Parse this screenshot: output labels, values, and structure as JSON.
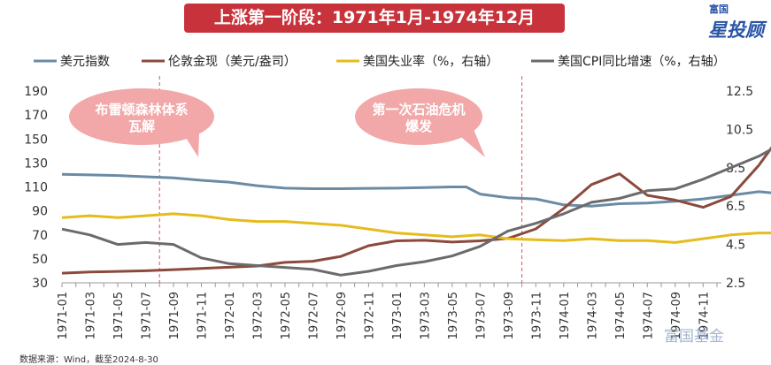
{
  "title": "上涨第一阶段：1971年1月-1974年12月",
  "logo": {
    "top": "富国",
    "main": "星投顾"
  },
  "watermark": "富国基金",
  "source": "数据来源：Wind，截至2024-8-30",
  "annotations": [
    {
      "text_line1": "布雷顿森林体系",
      "text_line2": "瓦解"
    },
    {
      "text_line1": "第一次石油危机",
      "text_line2": "爆发"
    }
  ],
  "colors": {
    "usd": "#6b8ba4",
    "gold": "#8b4a3c",
    "unemp": "#e5bc1b",
    "cpi": "#6b6b6b",
    "title_bg": "#c8333b",
    "bubble": "#f2a8a8"
  },
  "chart_data": {
    "type": "line",
    "title": "上涨第一阶段：1971年1月-1974年12月",
    "x_tick_labels": [
      "1971-01",
      "1971-03",
      "1971-05",
      "1971-07",
      "1971-09",
      "1971-11",
      "1972-01",
      "1972-03",
      "1972-05",
      "1972-07",
      "1972-09",
      "1972-11",
      "1973-01",
      "1973-03",
      "1973-05",
      "1973-07",
      "1973-09",
      "1973-11",
      "1974-01",
      "1974-03",
      "1974-05",
      "1974-07",
      "1974-09",
      "1974-11"
    ],
    "y_left": {
      "min": 30,
      "max": 190,
      "ticks": [
        30,
        50,
        70,
        90,
        110,
        130,
        150,
        170,
        190
      ]
    },
    "y_right": {
      "min": 2.5,
      "max": 12.5,
      "ticks": [
        2.5,
        4.5,
        6.5,
        8.5,
        10.5,
        12.5
      ]
    },
    "legend": [
      "美元指数",
      "伦敦金现（美元/盎司）",
      "美国失业率（%，右轴）",
      "美国CPI同比增速（%，右轴）"
    ],
    "legend_position": "top",
    "vlines": [
      "1971-08",
      "1973-10"
    ],
    "series": [
      {
        "name": "美元指数",
        "axis": "left",
        "color": "#6b8ba4",
        "width": 3,
        "points": [
          [
            0,
            120.5
          ],
          [
            2,
            120
          ],
          [
            4,
            119.5
          ],
          [
            6,
            118.5
          ],
          [
            8,
            117.5
          ],
          [
            10,
            115.5
          ],
          [
            12,
            114
          ],
          [
            14,
            111
          ],
          [
            16,
            109
          ],
          [
            18,
            108.5
          ],
          [
            20,
            108.5
          ],
          [
            22,
            108.8
          ],
          [
            24,
            109
          ],
          [
            26,
            109.5
          ],
          [
            28,
            110
          ],
          [
            29,
            110
          ],
          [
            30,
            104
          ],
          [
            32,
            101
          ],
          [
            34,
            100
          ],
          [
            36,
            95
          ],
          [
            38,
            94
          ],
          [
            40,
            96
          ],
          [
            42,
            96.5
          ],
          [
            44,
            98
          ],
          [
            46,
            100
          ],
          [
            48,
            103
          ],
          [
            50,
            106
          ],
          [
            52,
            104
          ],
          [
            54,
            101
          ],
          [
            56,
            100
          ],
          [
            58,
            101.5
          ],
          [
            60,
            103
          ],
          [
            62,
            101
          ],
          [
            63,
            100.5
          ],
          [
            64,
            101
          ],
          [
            66,
            100
          ]
        ]
      },
      {
        "name": "伦敦金现（美元/盎司）",
        "axis": "left",
        "color": "#8b4a3c",
        "width": 3,
        "points": [
          [
            0,
            38
          ],
          [
            2,
            39
          ],
          [
            4,
            39.5
          ],
          [
            6,
            40
          ],
          [
            8,
            41
          ],
          [
            10,
            42
          ],
          [
            12,
            43
          ],
          [
            14,
            44
          ],
          [
            16,
            47
          ],
          [
            18,
            48
          ],
          [
            20,
            52
          ],
          [
            22,
            61
          ],
          [
            24,
            65
          ],
          [
            26,
            65.5
          ],
          [
            28,
            64
          ],
          [
            30,
            65
          ],
          [
            32,
            67
          ],
          [
            34,
            75
          ],
          [
            36,
            92
          ],
          [
            38,
            112
          ],
          [
            40,
            121
          ],
          [
            42,
            103
          ],
          [
            44,
            99
          ],
          [
            46,
            93
          ],
          [
            48,
            102
          ],
          [
            50,
            128
          ],
          [
            52,
            160
          ],
          [
            54,
            170
          ],
          [
            56,
            152
          ],
          [
            58,
            145
          ],
          [
            60,
            152
          ],
          [
            62,
            160
          ],
          [
            64,
            170
          ],
          [
            66,
            182
          ],
          [
            68,
            183
          ],
          [
            70,
            181
          ]
        ]
      },
      {
        "name": "美国失业率（%，右轴）",
        "axis": "right",
        "color": "#e5bc1b",
        "width": 3,
        "points": [
          [
            0,
            5.9
          ],
          [
            2,
            6.0
          ],
          [
            4,
            5.9
          ],
          [
            6,
            6.0
          ],
          [
            8,
            6.1
          ],
          [
            10,
            6.0
          ],
          [
            12,
            5.8
          ],
          [
            14,
            5.7
          ],
          [
            16,
            5.7
          ],
          [
            18,
            5.6
          ],
          [
            20,
            5.5
          ],
          [
            22,
            5.3
          ],
          [
            24,
            5.1
          ],
          [
            26,
            5.0
          ],
          [
            28,
            4.9
          ],
          [
            30,
            5.0
          ],
          [
            32,
            4.8
          ],
          [
            34,
            4.75
          ],
          [
            36,
            4.7
          ],
          [
            38,
            4.8
          ],
          [
            40,
            4.7
          ],
          [
            42,
            4.7
          ],
          [
            44,
            4.6
          ],
          [
            46,
            4.8
          ],
          [
            48,
            5.0
          ],
          [
            50,
            5.1
          ],
          [
            52,
            5.1
          ],
          [
            54,
            5.3
          ],
          [
            56,
            5.3
          ],
          [
            58,
            5.5
          ],
          [
            60,
            5.6
          ],
          [
            62,
            6.0
          ],
          [
            64,
            6.5
          ],
          [
            66,
            7.1
          ],
          [
            70,
            7.2
          ]
        ]
      },
      {
        "name": "美国CPI同比增速（%，右轴）",
        "axis": "right",
        "color": "#6b6b6b",
        "width": 3,
        "points": [
          [
            0,
            5.3
          ],
          [
            2,
            5.0
          ],
          [
            4,
            4.5
          ],
          [
            6,
            4.6
          ],
          [
            8,
            4.5
          ],
          [
            10,
            3.8
          ],
          [
            12,
            3.5
          ],
          [
            14,
            3.4
          ],
          [
            16,
            3.3
          ],
          [
            18,
            3.2
          ],
          [
            20,
            2.9
          ],
          [
            22,
            3.1
          ],
          [
            24,
            3.4
          ],
          [
            26,
            3.6
          ],
          [
            28,
            3.9
          ],
          [
            30,
            4.4
          ],
          [
            32,
            5.2
          ],
          [
            34,
            5.6
          ],
          [
            36,
            6.1
          ],
          [
            38,
            6.7
          ],
          [
            40,
            6.9
          ],
          [
            42,
            7.3
          ],
          [
            44,
            7.4
          ],
          [
            46,
            7.9
          ],
          [
            48,
            8.5
          ],
          [
            50,
            9.1
          ],
          [
            52,
            9.9
          ],
          [
            54,
            10.3
          ],
          [
            56,
            10.7
          ],
          [
            58,
            10.9
          ],
          [
            60,
            11.3
          ],
          [
            62,
            11.9
          ],
          [
            64,
            12.1
          ],
          [
            66,
            12.2
          ],
          [
            70,
            12.2
          ]
        ]
      }
    ]
  }
}
